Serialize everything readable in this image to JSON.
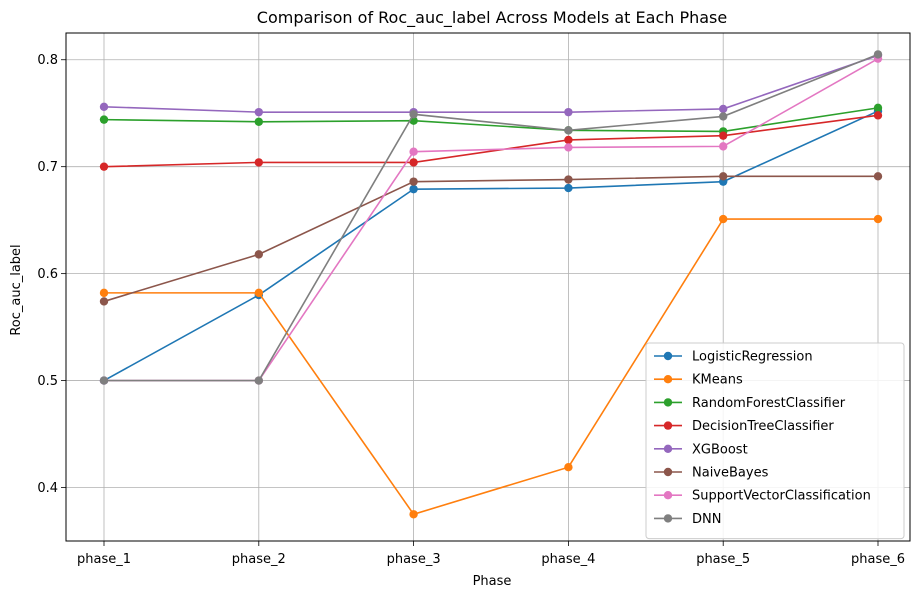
{
  "chart_data": {
    "type": "line",
    "title": "Comparison of Roc_auc_label Across Models at Each Phase",
    "xlabel": "Phase",
    "ylabel": "Roc_auc_label",
    "categories": [
      "phase_1",
      "phase_2",
      "phase_3",
      "phase_4",
      "phase_5",
      "phase_6"
    ],
    "ylim": [
      0.35,
      0.825
    ],
    "yticks": [
      0.4,
      0.5,
      0.6,
      0.7,
      0.8
    ],
    "ytick_labels": [
      "0.4",
      "0.5",
      "0.6",
      "0.7",
      "0.8"
    ],
    "grid": true,
    "legend_position": "lower-right",
    "series": [
      {
        "name": "LogisticRegression",
        "color": "#1f77b4",
        "values": [
          0.5,
          0.58,
          0.679,
          0.68,
          0.686,
          0.752
        ]
      },
      {
        "name": "KMeans",
        "color": "#ff7f0e",
        "values": [
          0.582,
          0.582,
          0.375,
          0.419,
          0.651,
          0.651
        ]
      },
      {
        "name": "RandomForestClassifier",
        "color": "#2ca02c",
        "values": [
          0.744,
          0.742,
          0.743,
          0.734,
          0.733,
          0.755
        ]
      },
      {
        "name": "DecisionTreeClassifier",
        "color": "#d62728",
        "values": [
          0.7,
          0.704,
          0.704,
          0.725,
          0.729,
          0.748
        ]
      },
      {
        "name": "XGBoost",
        "color": "#9467bd",
        "values": [
          0.756,
          0.751,
          0.751,
          0.751,
          0.754,
          0.804
        ]
      },
      {
        "name": "NaiveBayes",
        "color": "#8c564b",
        "values": [
          0.574,
          0.618,
          0.686,
          0.688,
          0.691,
          0.691
        ]
      },
      {
        "name": "SupportVectorClassification",
        "color": "#e377c2",
        "values": [
          0.5,
          0.5,
          0.714,
          0.718,
          0.719,
          0.801
        ]
      },
      {
        "name": "DNN",
        "color": "#7f7f7f",
        "values": [
          0.5,
          0.5,
          0.749,
          0.734,
          0.747,
          0.805
        ]
      }
    ]
  }
}
